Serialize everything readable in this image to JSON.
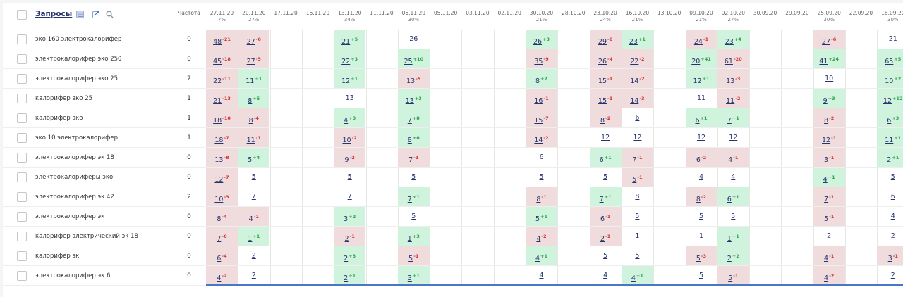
{
  "header": {
    "title": "Запросы",
    "freq_label": "Частота",
    "dates": [
      {
        "date": "27.11.20",
        "pct": "7%"
      },
      {
        "date": "20.11.20",
        "pct": "27%"
      },
      {
        "date": "17.11.20",
        "pct": ""
      },
      {
        "date": "16.11.20",
        "pct": ""
      },
      {
        "date": "13.11.20",
        "pct": "34%"
      },
      {
        "date": "11.11.20",
        "pct": ""
      },
      {
        "date": "06.11.20",
        "pct": "30%"
      },
      {
        "date": "05.11.20",
        "pct": ""
      },
      {
        "date": "03.11.20",
        "pct": ""
      },
      {
        "date": "02.11.20",
        "pct": ""
      },
      {
        "date": "30.10.20",
        "pct": "21%"
      },
      {
        "date": "28.10.20",
        "pct": ""
      },
      {
        "date": "23.10.20",
        "pct": "24%"
      },
      {
        "date": "16.10.20",
        "pct": "21%"
      },
      {
        "date": "13.10.20",
        "pct": ""
      },
      {
        "date": "09.10.20",
        "pct": "21%"
      },
      {
        "date": "02.10.20",
        "pct": "27%"
      },
      {
        "date": "30.09.20",
        "pct": ""
      },
      {
        "date": "29.09.20",
        "pct": ""
      },
      {
        "date": "25.09.20",
        "pct": "30%"
      },
      {
        "date": "22.09.20",
        "pct": ""
      },
      {
        "date": "18.09.20",
        "pct": "30%"
      }
    ]
  },
  "icons": {
    "excel": "excel-icon",
    "export": "export-icon",
    "search": "search-icon"
  },
  "colors": {
    "up_bg": "#cff3dc",
    "down_bg": "#f1dcdd",
    "up_text": "#2ea44f",
    "down_text": "#d23030",
    "link": "#26356e",
    "accent_line": "#4a76c4"
  },
  "rows": [
    {
      "keyword": "эко 160 электрокалорифер",
      "freq": "0",
      "cells": [
        [
          "48",
          "-21"
        ],
        [
          "27",
          "-6"
        ],
        null,
        null,
        [
          "21",
          "+5"
        ],
        null,
        [
          "26",
          ""
        ],
        null,
        null,
        null,
        [
          "26",
          "+3"
        ],
        null,
        [
          "29",
          "-6"
        ],
        [
          "23",
          "+1"
        ],
        null,
        [
          "24",
          "-1"
        ],
        [
          "23",
          "+4"
        ],
        null,
        null,
        [
          "27",
          "-6"
        ],
        null,
        [
          "21",
          ""
        ]
      ]
    },
    {
      "keyword": "электрокалорифер эко 250",
      "freq": "0",
      "cells": [
        [
          "45",
          "-18"
        ],
        [
          "27",
          "-5"
        ],
        null,
        null,
        [
          "22",
          "+3"
        ],
        null,
        [
          "25",
          "+10"
        ],
        null,
        null,
        null,
        [
          "35",
          "-9"
        ],
        null,
        [
          "26",
          "-4"
        ],
        [
          "22",
          "-2"
        ],
        null,
        [
          "20",
          "+41"
        ],
        [
          "61",
          "-20"
        ],
        null,
        null,
        [
          "41",
          "+24"
        ],
        null,
        [
          "65",
          "+5"
        ]
      ]
    },
    {
      "keyword": "электрокалорифер эко 25",
      "freq": "2",
      "cells": [
        [
          "22",
          "-11"
        ],
        [
          "11",
          "+1"
        ],
        null,
        null,
        [
          "12",
          "+1"
        ],
        null,
        [
          "13",
          "-5"
        ],
        null,
        null,
        null,
        [
          "8",
          "+7"
        ],
        null,
        [
          "15",
          "-1"
        ],
        [
          "14",
          "-2"
        ],
        null,
        [
          "12",
          "+1"
        ],
        [
          "13",
          "-3"
        ],
        null,
        null,
        [
          "10",
          ""
        ],
        null,
        [
          "10",
          "+2"
        ]
      ]
    },
    {
      "keyword": "калорифер эко 25",
      "freq": "1",
      "cells": [
        [
          "21",
          "-13"
        ],
        [
          "8",
          "+5"
        ],
        null,
        null,
        [
          "13",
          ""
        ],
        null,
        [
          "13",
          "+3"
        ],
        null,
        null,
        null,
        [
          "16",
          "-1"
        ],
        null,
        [
          "15",
          "-1"
        ],
        [
          "14",
          "-3"
        ],
        null,
        [
          "11",
          ""
        ],
        [
          "11",
          "-2"
        ],
        null,
        null,
        [
          "9",
          "+3"
        ],
        null,
        [
          "12",
          "+12"
        ]
      ]
    },
    {
      "keyword": "калорифер эко",
      "freq": "1",
      "cells": [
        [
          "18",
          "-10"
        ],
        [
          "8",
          "-4"
        ],
        null,
        null,
        [
          "4",
          "+3"
        ],
        null,
        [
          "7",
          "+8"
        ],
        null,
        null,
        null,
        [
          "15",
          "-7"
        ],
        null,
        [
          "8",
          "-2"
        ],
        [
          "6",
          ""
        ],
        null,
        [
          "6",
          "+1"
        ],
        [
          "7",
          "+1"
        ],
        null,
        null,
        [
          "8",
          "-2"
        ],
        null,
        [
          "6",
          "+3"
        ]
      ]
    },
    {
      "keyword": "эко 10 электрокалорифер",
      "freq": "1",
      "cells": [
        [
          "18",
          "-7"
        ],
        [
          "11",
          "-1"
        ],
        null,
        null,
        [
          "10",
          "-2"
        ],
        null,
        [
          "8",
          "+6"
        ],
        null,
        null,
        null,
        [
          "14",
          "-2"
        ],
        null,
        [
          "12",
          ""
        ],
        [
          "12",
          ""
        ],
        null,
        [
          "12",
          ""
        ],
        [
          "12",
          ""
        ],
        null,
        null,
        [
          "12",
          "-1"
        ],
        null,
        [
          "11",
          "+1"
        ]
      ]
    },
    {
      "keyword": "электрокалорифер эк 18",
      "freq": "0",
      "cells": [
        [
          "13",
          "-8"
        ],
        [
          "5",
          "+4"
        ],
        null,
        null,
        [
          "9",
          "-2"
        ],
        null,
        [
          "7",
          "-1"
        ],
        null,
        null,
        null,
        [
          "6",
          ""
        ],
        null,
        [
          "6",
          "+1"
        ],
        [
          "7",
          "-1"
        ],
        null,
        [
          "6",
          "-2"
        ],
        [
          "4",
          "-1"
        ],
        null,
        null,
        [
          "3",
          "-1"
        ],
        null,
        [
          "2",
          "+1"
        ]
      ]
    },
    {
      "keyword": "электрокалориферы эко",
      "freq": "0",
      "cells": [
        [
          "12",
          "-7"
        ],
        [
          "5",
          ""
        ],
        null,
        null,
        [
          "5",
          ""
        ],
        null,
        [
          "5",
          ""
        ],
        null,
        null,
        null,
        [
          "5",
          ""
        ],
        null,
        [
          "5",
          ""
        ],
        [
          "5",
          "-1"
        ],
        null,
        [
          "4",
          ""
        ],
        [
          "4",
          ""
        ],
        null,
        null,
        [
          "4",
          "+1"
        ],
        null,
        [
          "5",
          ""
        ]
      ]
    },
    {
      "keyword": "электрокалорифер эк 42",
      "freq": "2",
      "cells": [
        [
          "10",
          "-3"
        ],
        [
          "7",
          ""
        ],
        null,
        null,
        [
          "7",
          ""
        ],
        null,
        [
          "7",
          "+1"
        ],
        null,
        null,
        null,
        [
          "8",
          "-1"
        ],
        null,
        [
          "7",
          "+1"
        ],
        [
          "8",
          ""
        ],
        null,
        [
          "8",
          "-2"
        ],
        [
          "6",
          "+1"
        ],
        null,
        null,
        [
          "7",
          "-1"
        ],
        null,
        [
          "6",
          ""
        ]
      ]
    },
    {
      "keyword": "электрокалорифер эк",
      "freq": "0",
      "cells": [
        [
          "8",
          "-4"
        ],
        [
          "4",
          "-1"
        ],
        null,
        null,
        [
          "3",
          "+2"
        ],
        null,
        [
          "5",
          ""
        ],
        null,
        null,
        null,
        [
          "5",
          "+1"
        ],
        null,
        [
          "6",
          "-1"
        ],
        [
          "5",
          ""
        ],
        null,
        [
          "5",
          ""
        ],
        [
          "5",
          ""
        ],
        null,
        null,
        [
          "5",
          "-1"
        ],
        null,
        [
          "4",
          ""
        ]
      ]
    },
    {
      "keyword": "калорифер электрический эк 18",
      "freq": "0",
      "cells": [
        [
          "7",
          "-6"
        ],
        [
          "1",
          "+1"
        ],
        null,
        null,
        [
          "2",
          "-1"
        ],
        null,
        [
          "1",
          "+3"
        ],
        null,
        null,
        null,
        [
          "4",
          "-2"
        ],
        null,
        [
          "2",
          "-1"
        ],
        [
          "1",
          ""
        ],
        null,
        [
          "1",
          ""
        ],
        [
          "1",
          "+1"
        ],
        null,
        null,
        [
          "2",
          ""
        ],
        null,
        [
          "2",
          ""
        ]
      ]
    },
    {
      "keyword": "калорифер эк",
      "freq": "0",
      "cells": [
        [
          "6",
          "-4"
        ],
        [
          "2",
          ""
        ],
        null,
        null,
        [
          "2",
          "+3"
        ],
        null,
        [
          "5",
          "-1"
        ],
        null,
        null,
        null,
        [
          "4",
          "+1"
        ],
        null,
        [
          "5",
          ""
        ],
        [
          "5",
          ""
        ],
        null,
        [
          "5",
          "-3"
        ],
        [
          "2",
          "+2"
        ],
        null,
        null,
        [
          "4",
          "-1"
        ],
        null,
        [
          "3",
          "-1"
        ]
      ]
    },
    {
      "keyword": "электрокалорифер эк 6",
      "freq": "0",
      "cells": [
        [
          "4",
          "-2"
        ],
        [
          "2",
          ""
        ],
        null,
        null,
        [
          "2",
          "+1"
        ],
        null,
        [
          "3",
          "+1"
        ],
        null,
        null,
        null,
        [
          "4",
          ""
        ],
        null,
        [
          "4",
          ""
        ],
        [
          "4",
          "+1"
        ],
        null,
        [
          "5",
          ""
        ],
        [
          "5",
          "-1"
        ],
        null,
        null,
        [
          "4",
          "-2"
        ],
        null,
        [
          "2",
          ""
        ]
      ]
    }
  ]
}
